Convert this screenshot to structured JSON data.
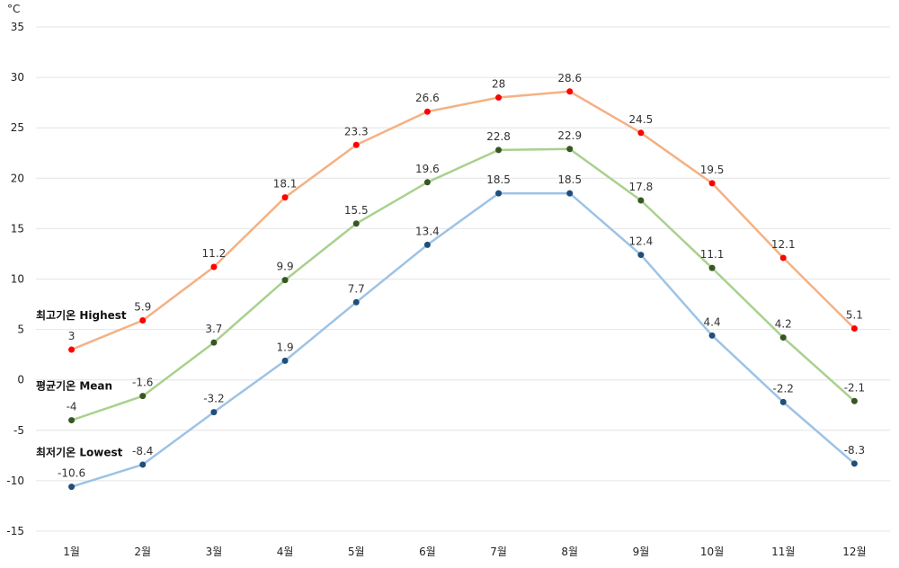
{
  "chart_data": {
    "type": "line",
    "unit": "°C",
    "categories": [
      "1월",
      "2월",
      "3월",
      "4월",
      "5월",
      "6월",
      "7월",
      "8월",
      "9월",
      "10월",
      "11월",
      "12월"
    ],
    "ylim": [
      -15,
      35
    ],
    "yticks": [
      35,
      30,
      25,
      20,
      15,
      10,
      5,
      0,
      -5,
      -10,
      -15
    ],
    "grid": true,
    "series": [
      {
        "name": "최고기온 Highest",
        "line_color": "#f4b183",
        "marker_color": "#ff0000",
        "values": [
          3,
          5.9,
          11.2,
          18.1,
          23.3,
          26.6,
          28,
          28.6,
          24.5,
          19.5,
          12.1,
          5.1
        ]
      },
      {
        "name": "평균기온 Mean",
        "line_color": "#a9d18e",
        "marker_color": "#375623",
        "values": [
          -4,
          -1.6,
          3.7,
          9.9,
          15.5,
          19.6,
          22.8,
          22.9,
          17.8,
          11.1,
          4.2,
          -2.1
        ]
      },
      {
        "name": "최저기온 Lowest",
        "line_color": "#9dc3e6",
        "marker_color": "#1f4e79",
        "values": [
          -10.6,
          -8.4,
          -3.2,
          1.9,
          7.7,
          13.4,
          18.5,
          18.5,
          12.4,
          4.4,
          -2.2,
          -8.3
        ]
      }
    ]
  }
}
